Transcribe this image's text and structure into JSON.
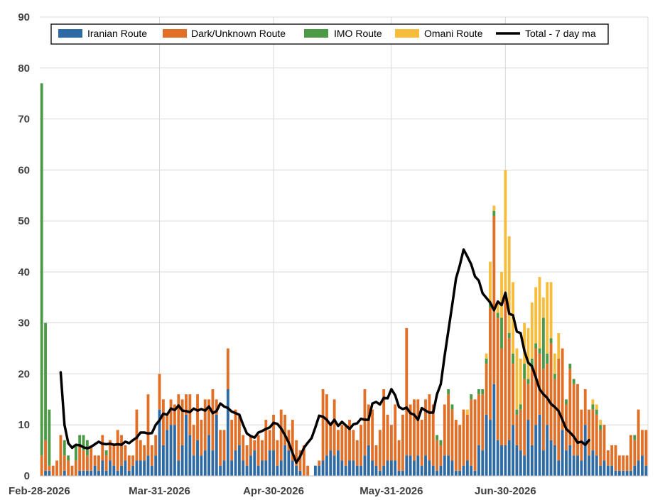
{
  "chart_data": {
    "type": "bar",
    "stacked": true,
    "ylim": [
      0,
      90
    ],
    "y_ticks": [
      0,
      10,
      20,
      30,
      40,
      50,
      60,
      70,
      80,
      90
    ],
    "x_tick_labels": [
      "Feb-28-2026",
      "Mar-31-2026",
      "Apr-30-2026",
      "May-31-2026",
      "Jun-30-2026"
    ],
    "x_tick_days": [
      0,
      31,
      61,
      92,
      122
    ],
    "grid": true,
    "legend_position": "top",
    "legend": [
      {
        "name": "Iranian Route",
        "color": "#2e6aa4"
      },
      {
        "name": "Dark/Unknown Route",
        "color": "#e26f26"
      },
      {
        "name": "IMO Route",
        "color": "#4c9a46"
      },
      {
        "name": "Omani Route",
        "color": "#f6bd3c"
      },
      {
        "name": "Total  - 7 day ma",
        "color": "#000000"
      }
    ],
    "series": [
      {
        "name": "Iranian Route",
        "color": "#2e6aa4",
        "values": [
          0,
          1,
          1,
          0,
          0,
          0,
          1,
          0,
          0,
          0,
          1,
          1,
          1,
          1,
          2,
          1,
          3,
          1,
          3,
          2,
          1,
          2,
          3,
          1,
          2,
          3,
          3,
          3,
          4,
          2,
          4,
          13,
          6,
          9,
          10,
          10,
          3,
          6,
          12,
          8,
          4,
          7,
          4,
          5,
          8,
          5,
          12,
          2,
          3,
          17,
          3,
          5,
          6,
          3,
          2,
          4,
          5,
          2,
          3,
          3,
          5,
          5,
          2,
          3,
          6,
          5,
          3,
          2,
          1,
          0,
          0,
          0,
          2,
          2,
          3,
          4,
          5,
          4,
          5,
          3,
          2,
          3,
          3,
          2,
          2,
          4,
          6,
          3,
          2,
          1,
          2,
          3,
          3,
          3,
          1,
          1,
          4,
          4,
          3,
          4,
          2,
          4,
          3,
          2,
          1,
          2,
          4,
          4,
          3,
          1,
          1,
          2,
          3,
          2,
          1,
          6,
          5,
          12,
          11,
          18,
          7,
          6,
          6,
          7,
          10,
          6,
          5,
          4,
          11,
          6,
          10,
          12,
          5,
          10,
          7,
          6,
          3,
          9,
          5,
          6,
          4,
          4,
          3,
          10,
          4,
          5,
          4,
          2,
          3,
          2,
          2,
          1,
          1,
          1,
          1,
          1,
          2,
          3,
          4,
          2
        ]
      },
      {
        "name": "Dark/Unknown Route",
        "color": "#e26f26",
        "values": [
          4,
          6,
          1,
          2,
          3,
          8,
          3,
          3,
          2,
          3,
          5,
          4,
          3,
          5,
          2,
          3,
          5,
          3,
          4,
          4,
          8,
          6,
          3,
          3,
          2,
          10,
          4,
          3,
          12,
          4,
          4,
          7,
          9,
          3,
          5,
          4,
          13,
          9,
          4,
          8,
          6,
          9,
          7,
          10,
          7,
          12,
          3,
          7,
          6,
          8,
          8,
          8,
          6,
          5,
          4,
          4,
          2,
          6,
          4,
          8,
          4,
          7,
          5,
          10,
          6,
          4,
          8,
          5,
          4,
          6,
          2,
          0,
          0,
          1,
          14,
          12,
          5,
          11,
          4,
          7,
          8,
          8,
          6,
          5,
          8,
          13,
          8,
          10,
          4,
          8,
          15,
          9,
          7,
          11,
          6,
          11,
          25,
          10,
          12,
          11,
          9,
          11,
          13,
          12,
          6,
          4,
          10,
          12,
          10,
          10,
          9,
          11,
          9,
          13,
          14,
          10,
          11,
          10,
          22,
          33,
          24,
          19,
          30,
          20,
          12,
          6,
          8,
          15,
          7,
          15,
          15,
          12,
          16,
          12,
          19,
          13,
          20,
          16,
          9,
          15,
          14,
          14,
          10,
          7,
          9,
          8,
          8,
          7,
          7,
          3,
          4,
          5,
          3,
          3,
          3,
          7,
          5,
          10,
          5,
          7
        ]
      },
      {
        "name": "IMO Route",
        "color": "#4c9a46",
        "values": [
          73,
          23,
          11,
          0,
          0,
          0,
          3,
          1,
          0,
          3,
          2,
          3,
          3,
          0,
          0,
          0,
          0,
          1,
          0,
          0,
          0,
          0,
          0,
          0,
          0,
          0,
          0,
          0,
          0,
          0,
          0,
          0,
          0,
          0,
          0,
          0,
          0,
          0,
          0,
          0,
          0,
          0,
          0,
          0,
          0,
          0,
          0,
          0,
          0,
          0,
          0,
          0,
          0,
          0,
          0,
          0,
          0,
          0,
          0,
          0,
          0,
          0,
          0,
          0,
          0,
          0,
          0,
          0,
          0,
          0,
          0,
          0,
          0,
          0,
          0,
          0,
          0,
          0,
          0,
          0,
          0,
          0,
          0,
          0,
          0,
          0,
          0,
          0,
          0,
          0,
          0,
          0,
          0,
          0,
          0,
          0,
          0,
          0,
          0,
          0,
          0,
          0,
          0,
          0,
          1,
          1,
          0,
          1,
          1,
          0,
          0,
          0,
          0,
          1,
          0,
          1,
          1,
          1,
          1,
          1,
          1,
          6,
          0,
          1,
          2,
          1,
          1,
          3,
          1,
          2,
          1,
          1,
          10,
          2,
          1,
          1,
          0,
          0,
          1,
          1,
          1,
          0,
          0,
          0,
          0,
          1,
          1,
          1,
          0,
          0,
          0,
          0,
          0,
          0,
          0,
          0,
          1,
          0,
          0,
          0
        ]
      },
      {
        "name": "Omani Route",
        "color": "#f6bd3c",
        "values": [
          0,
          0,
          0,
          0,
          0,
          0,
          0,
          0,
          0,
          0,
          0,
          0,
          0,
          0,
          0,
          0,
          0,
          0,
          0,
          0,
          0,
          0,
          0,
          0,
          0,
          0,
          0,
          0,
          0,
          0,
          0,
          0,
          0,
          0,
          0,
          0,
          0,
          0,
          0,
          0,
          0,
          0,
          0,
          0,
          0,
          0,
          0,
          0,
          0,
          0,
          0,
          0,
          0,
          0,
          0,
          0,
          0,
          0,
          0,
          0,
          0,
          0,
          0,
          0,
          0,
          0,
          0,
          0,
          0,
          0,
          0,
          0,
          0,
          0,
          0,
          0,
          0,
          0,
          0,
          0,
          0,
          0,
          0,
          0,
          0,
          0,
          0,
          0,
          0,
          0,
          0,
          0,
          0,
          0,
          0,
          0,
          0,
          0,
          0,
          0,
          0,
          0,
          0,
          0,
          0,
          0,
          0,
          0,
          0,
          0,
          0,
          0,
          1,
          0,
          0,
          0,
          0,
          1,
          8,
          1,
          2,
          9,
          24,
          19,
          14,
          12,
          9,
          8,
          10,
          11,
          11,
          14,
          4,
          14,
          11,
          4,
          5,
          0,
          0,
          0,
          0,
          0,
          0,
          0,
          0,
          1,
          1,
          1,
          0,
          0,
          0,
          0,
          0,
          0,
          0,
          0,
          0,
          0,
          0,
          0
        ]
      },
      {
        "name": "Total  - 7 day ma",
        "color": "#000000",
        "type": "line",
        "start_day": 5,
        "values": [
          20.3,
          10.0,
          6.4,
          5.5,
          6.1,
          6.0,
          5.6,
          5.4,
          5.7,
          6.2,
          6.7,
          6.3,
          6.2,
          6.3,
          6.1,
          6.2,
          6.1,
          6.7,
          6.4,
          7.0,
          7.5,
          8.5,
          8.5,
          8.3,
          8.4,
          10.0,
          10.9,
          12.2,
          12.0,
          13.2,
          12.9,
          13.8,
          12.8,
          12.7,
          12.5,
          13.2,
          12.8,
          13.1,
          12.8,
          13.6,
          12.3,
          12.7,
          14.2,
          13.6,
          13.3,
          12.6,
          12.3,
          12.0,
          10.0,
          8.3,
          7.8,
          7.5,
          8.5,
          8.8,
          9.2,
          9.5,
          10.4,
          10.2,
          9.3,
          8.0,
          6.5,
          4.5,
          2.6,
          3.8,
          5.5,
          6.5,
          7.4,
          9.5,
          11.8,
          11.6,
          11.0,
          10.0,
          11.0,
          9.8,
          10.6,
          9.9,
          9.2,
          10.1,
          10.3,
          11.2,
          11.0,
          11.0,
          14.2,
          14.5,
          14.0,
          15.3,
          15.2,
          17.0,
          15.8,
          13.5,
          13.1,
          13.4,
          12.3,
          12.0,
          11.0,
          13.3,
          12.8,
          12.4,
          12.4,
          16.0,
          18.0,
          23.5,
          28.5,
          33.5,
          38.7,
          41.3,
          44.4,
          43.0,
          41.5,
          39.1,
          38.3,
          35.8,
          34.9,
          34.0,
          32.5,
          34.2,
          33.5,
          35.9,
          31.8,
          31.5,
          28.3,
          28.0,
          24.5,
          22.2,
          21.5,
          19.3,
          17.0,
          16.0,
          15.3,
          14.1,
          13.5,
          12.7,
          11.0,
          9.2,
          8.5,
          7.7,
          6.5,
          6.7,
          6.1,
          7.0
        ]
      }
    ]
  }
}
